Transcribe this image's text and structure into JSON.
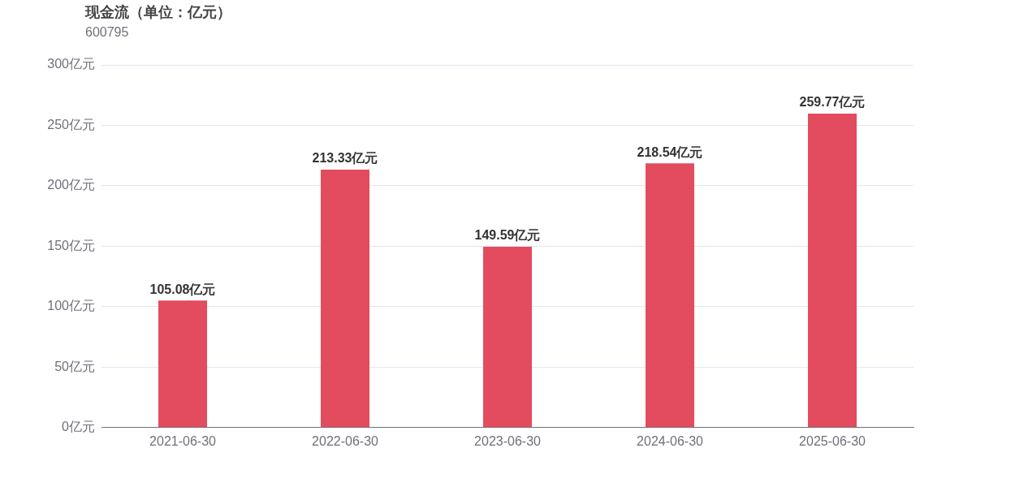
{
  "chart_data": {
    "type": "bar",
    "title": "现金流（单位：亿元）",
    "subtitle": "600795",
    "categories": [
      "2021-06-30",
      "2022-06-30",
      "2023-06-30",
      "2024-06-30",
      "2025-06-30"
    ],
    "values": [
      105.08,
      213.33,
      149.59,
      218.54,
      259.77
    ],
    "value_labels": [
      "105.08亿元",
      "213.33亿元",
      "149.59亿元",
      "218.54亿元",
      "259.77亿元"
    ],
    "color": "#e34b5e",
    "ylim": [
      0,
      300
    ],
    "yticks": [
      {
        "value": 0,
        "label": "0亿元"
      },
      {
        "value": 50,
        "label": "50亿元"
      },
      {
        "value": 100,
        "label": "100亿元"
      },
      {
        "value": 150,
        "label": "150亿元"
      },
      {
        "value": 200,
        "label": "200亿元"
      },
      {
        "value": 250,
        "label": "250亿元"
      },
      {
        "value": 300,
        "label": "300亿元"
      }
    ],
    "grid": "y",
    "legend": false
  }
}
